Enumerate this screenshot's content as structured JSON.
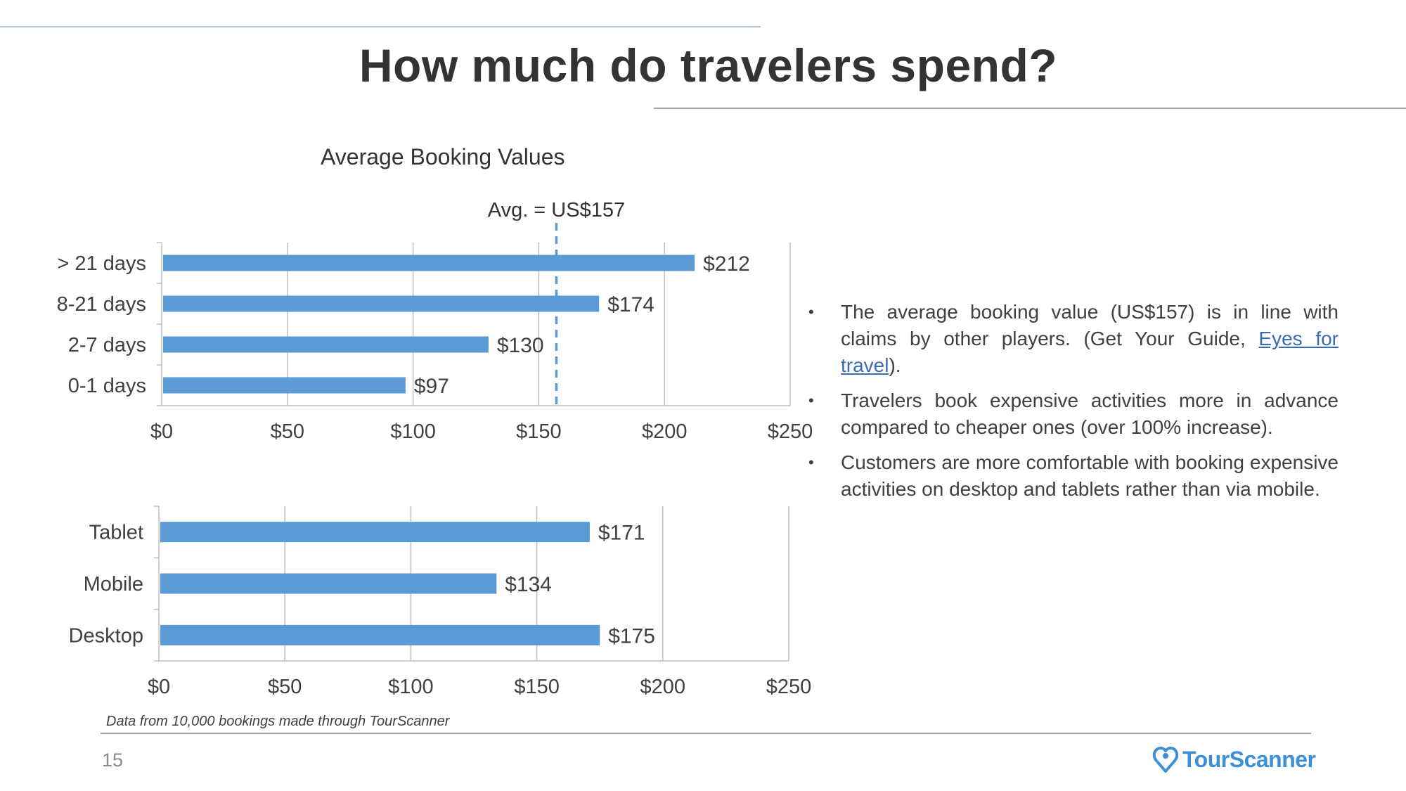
{
  "slide": {
    "title": "How much do travelers spend?",
    "page_number": "15",
    "footnote": "Data from 10,000 bookings made through TourScanner",
    "logo_text": "TourScanner",
    "logo_icon": "heart-pin-icon",
    "bullets": [
      {
        "pre": "The average booking value (US$157) is in line with claims by other players. (Get Your Guide, ",
        "link": "Eyes for travel",
        "post": ")."
      },
      {
        "pre": "Travelers book expensive activities more in advance compared to cheaper ones (over 100% increase).",
        "link": "",
        "post": ""
      },
      {
        "pre": "Customers are more comfortable with booking expensive activities on desktop and tablets rather than via mobile.",
        "link": "",
        "post": ""
      }
    ]
  },
  "colors": {
    "bar": "#5b9bd5",
    "grid": "#bfbfbf",
    "avg_line": "#5b9bd5",
    "link": "#3a6cb5",
    "brand": "#3d8fd6"
  },
  "chart_data": [
    {
      "type": "bar",
      "orientation": "horizontal",
      "title": "Average Booking Values",
      "categories": [
        "> 21 days",
        "8-21 days",
        "2-7 days",
        "0-1 days"
      ],
      "values": [
        212,
        174,
        130,
        97
      ],
      "data_labels": [
        "$212",
        "$174",
        "$130",
        "$97"
      ],
      "xlim": [
        0,
        250
      ],
      "xticks": [
        0,
        50,
        100,
        150,
        200,
        250
      ],
      "xtick_labels": [
        "$0",
        "$50",
        "$100",
        "$150",
        "$200",
        "$250"
      ],
      "reference_line": {
        "value": 157,
        "label": "Avg. = US$157",
        "style": "dashed"
      },
      "grid": true
    },
    {
      "type": "bar",
      "orientation": "horizontal",
      "categories": [
        "Tablet",
        "Mobile",
        "Desktop"
      ],
      "values": [
        171,
        134,
        175
      ],
      "data_labels": [
        "$171",
        "$134",
        "$175"
      ],
      "xlim": [
        0,
        250
      ],
      "xticks": [
        0,
        50,
        100,
        150,
        200,
        250
      ],
      "xtick_labels": [
        "$0",
        "$50",
        "$100",
        "$150",
        "$200",
        "$250"
      ],
      "grid": true
    }
  ]
}
